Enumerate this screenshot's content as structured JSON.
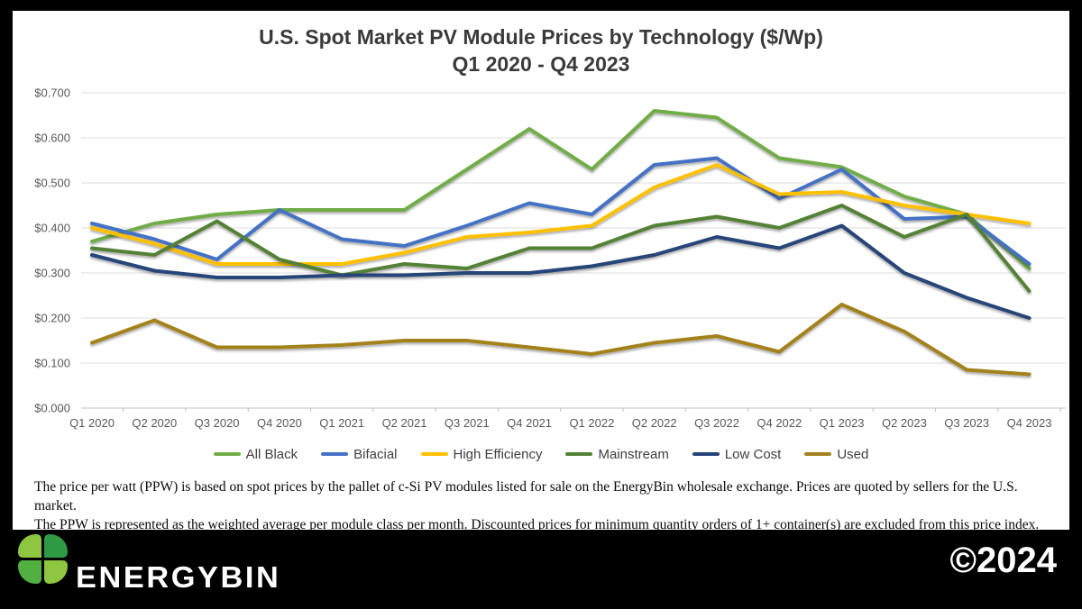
{
  "title": {
    "line1": "U.S. Spot Market PV Module Prices by Technology ($/Wp)",
    "line2": "Q1 2020 - Q4 2023"
  },
  "footnote": {
    "line1": "The price per watt (PPW) is based on spot prices by the pallet of c-Si PV modules listed for sale on the EnergyBin wholesale exchange.  Prices are quoted by sellers for the U.S. market.",
    "line2": "The PPW is represented as the weighted average per module class per month.  Discounted prices for minimum quantity orders of 1+ container(s) are excluded from this price index."
  },
  "footer": {
    "brand": "ENERGYBIN",
    "copyright": "©2024",
    "leaf_colors": [
      "#8DC63F",
      "#2E9B44",
      "#52B043",
      "#8DC63F"
    ]
  },
  "chart_data": {
    "type": "line",
    "categories": [
      "Q1 2020",
      "Q2 2020",
      "Q3 2020",
      "Q4 2020",
      "Q1 2021",
      "Q2 2021",
      "Q3 2021",
      "Q4 2021",
      "Q1 2022",
      "Q2 2022",
      "Q3 2022",
      "Q4 2022",
      "Q1 2023",
      "Q2 2023",
      "Q3 2023",
      "Q4 2023"
    ],
    "series": [
      {
        "name": "All Black",
        "color": "#70AD47",
        "values": [
          0.37,
          0.41,
          0.43,
          0.44,
          0.44,
          0.44,
          0.53,
          0.62,
          0.53,
          0.66,
          0.645,
          0.555,
          0.535,
          0.47,
          0.43,
          0.31
        ]
      },
      {
        "name": "Bifacial",
        "color": "#4472C4",
        "values": [
          0.41,
          0.375,
          0.33,
          0.44,
          0.375,
          0.36,
          0.405,
          0.455,
          0.43,
          0.54,
          0.555,
          0.465,
          0.53,
          0.42,
          0.425,
          0.32
        ]
      },
      {
        "name": "High Efficiency",
        "color": "#FFC000",
        "values": [
          0.4,
          0.365,
          0.32,
          0.32,
          0.32,
          0.345,
          0.38,
          0.39,
          0.405,
          0.49,
          0.54,
          0.475,
          0.48,
          0.45,
          0.43,
          0.41
        ]
      },
      {
        "name": "Mainstream",
        "color": "#538135",
        "values": [
          0.355,
          0.34,
          0.415,
          0.33,
          0.295,
          0.32,
          0.31,
          0.355,
          0.355,
          0.405,
          0.425,
          0.4,
          0.45,
          0.38,
          0.43,
          0.26
        ]
      },
      {
        "name": "Low Cost",
        "color": "#264478",
        "values": [
          0.34,
          0.305,
          0.29,
          0.29,
          0.295,
          0.295,
          0.3,
          0.3,
          0.315,
          0.34,
          0.38,
          0.355,
          0.405,
          0.3,
          0.245,
          0.2
        ]
      },
      {
        "name": "Used",
        "color": "#A3821C",
        "values": [
          0.145,
          0.195,
          0.135,
          0.135,
          0.14,
          0.15,
          0.15,
          0.135,
          0.12,
          0.145,
          0.16,
          0.125,
          0.23,
          0.17,
          0.085,
          0.075
        ]
      }
    ],
    "ylim": [
      0,
      0.7
    ],
    "ytick_step": 0.1,
    "ytick_labels": [
      "$0.000",
      "$0.100",
      "$0.200",
      "$0.300",
      "$0.400",
      "$0.500",
      "$0.600",
      "$0.700"
    ],
    "grid": true,
    "legend_position": "bottom"
  }
}
